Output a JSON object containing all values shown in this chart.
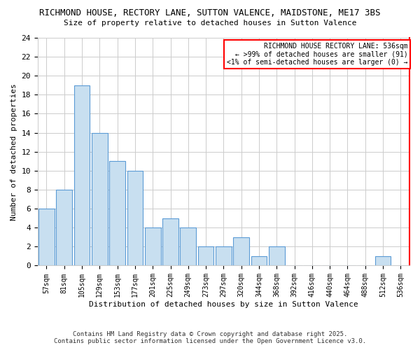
{
  "title_line1": "RICHMOND HOUSE, RECTORY LANE, SUTTON VALENCE, MAIDSTONE, ME17 3BS",
  "title_line2": "Size of property relative to detached houses in Sutton Valence",
  "xlabel": "Distribution of detached houses by size in Sutton Valence",
  "ylabel": "Number of detached properties",
  "categories": [
    "57sqm",
    "81sqm",
    "105sqm",
    "129sqm",
    "153sqm",
    "177sqm",
    "201sqm",
    "225sqm",
    "249sqm",
    "273sqm",
    "297sqm",
    "320sqm",
    "344sqm",
    "368sqm",
    "392sqm",
    "416sqm",
    "440sqm",
    "464sqm",
    "488sqm",
    "512sqm",
    "536sqm"
  ],
  "values": [
    6,
    8,
    19,
    14,
    11,
    10,
    4,
    5,
    4,
    2,
    2,
    3,
    1,
    2,
    0,
    0,
    0,
    0,
    0,
    1,
    0
  ],
  "bar_color": "#c8dff0",
  "bar_edge_color": "#5b9bd5",
  "ylim": [
    0,
    24
  ],
  "yticks": [
    0,
    2,
    4,
    6,
    8,
    10,
    12,
    14,
    16,
    18,
    20,
    22,
    24
  ],
  "legend_text_line1": "RICHMOND HOUSE RECTORY LANE: 536sqm",
  "legend_text_line2": "← >99% of detached houses are smaller (91)",
  "legend_text_line3": "<1% of semi-detached houses are larger (0) →",
  "legend_edge_color": "#ff0000",
  "footer_line1": "Contains HM Land Registry data © Crown copyright and database right 2025.",
  "footer_line2": "Contains public sector information licensed under the Open Government Licence v3.0.",
  "background_color": "#ffffff",
  "grid_color": "#cccccc"
}
